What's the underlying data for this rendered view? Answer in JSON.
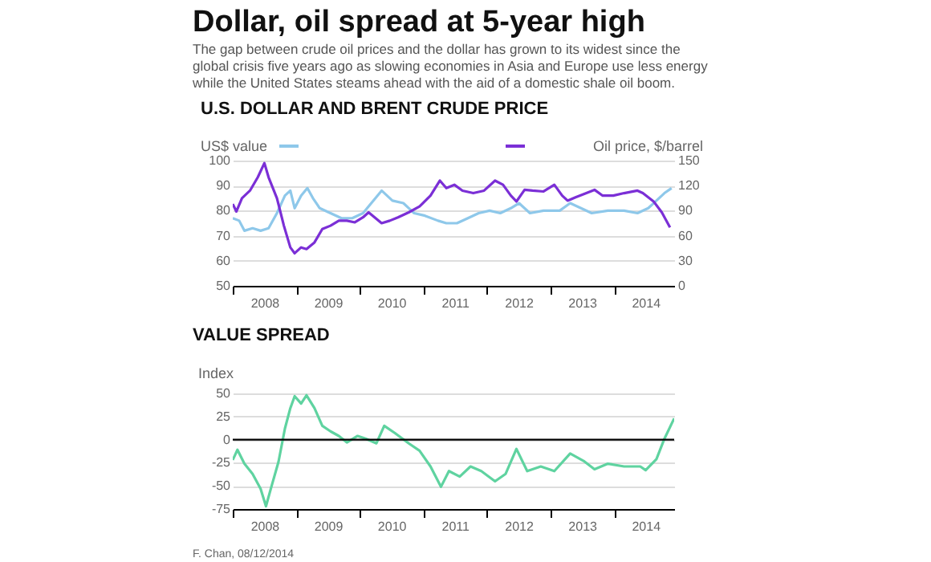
{
  "chart_data": [
    {
      "type": "line",
      "title": "U.S. DOLLAR AND BRENT CRUDE PRICE",
      "annotations": [
        "Dollar, oil spread at 5-year high",
        "The gap between crude oil prices and the dollar has grown to its widest since the global crisis five years ago as slowing economies in Asia and Europe use less energy while the United States steams ahead with the aid of a domestic shale oil boom."
      ],
      "series": [
        {
          "name": "US$ value",
          "color": "#8ec8ea",
          "x": [
            "2008-01-01",
            "2008-02-07",
            "2008-03-08",
            "2008-04-24",
            "2008-06-09",
            "2008-07-25",
            "2008-09-11",
            "2008-10-27",
            "2008-11-27",
            "2008-12-22",
            "2009-01-28",
            "2009-03-05",
            "2009-04-06",
            "2009-05-15",
            "2009-07-16",
            "2009-09-17",
            "2009-11-18",
            "2010-01-19",
            "2010-05-06",
            "2010-07-07",
            "2010-09-08",
            "2010-11-09",
            "2011-01-10",
            "2011-03-26",
            "2011-05-13",
            "2011-07-13",
            "2011-09-14",
            "2011-11-15",
            "2012-01-17",
            "2012-03-18",
            "2012-05-18",
            "2012-07-04",
            "2012-09-05",
            "2012-11-22",
            "2013-02-23",
            "2013-04-24",
            "2013-06-25",
            "2013-08-26",
            "2013-11-27",
            "2014-02-28",
            "2014-05-16",
            "2014-07-17",
            "2014-09-02",
            "2014-10-18",
            "2014-11-28"
          ],
          "values": [
            77,
            76,
            72,
            73,
            72,
            73,
            79,
            86,
            88,
            81,
            86,
            89,
            85,
            81,
            79,
            77,
            77,
            79,
            88,
            84,
            83,
            79,
            78,
            76,
            75,
            75,
            77,
            79,
            80,
            79,
            81,
            83,
            79,
            80,
            80,
            83,
            81,
            79,
            80,
            80,
            79,
            81,
            84,
            87,
            89
          ]
        },
        {
          "name": "Oil price, $/barrel",
          "color": "#7b2fd6",
          "axis": "y2",
          "x": [
            "2008-01-01",
            "2008-01-22",
            "2008-02-23",
            "2008-04-09",
            "2008-05-24",
            "2008-07-01",
            "2008-07-25",
            "2008-09-11",
            "2008-10-21",
            "2008-11-27",
            "2008-12-22",
            "2009-01-28",
            "2009-02-28",
            "2009-04-15",
            "2009-05-30",
            "2009-07-16",
            "2009-09-02",
            "2009-10-18",
            "2009-12-03",
            "2010-01-19",
            "2010-02-20",
            "2010-05-06",
            "2010-06-22",
            "2010-08-08",
            "2010-10-09",
            "2010-12-10",
            "2011-02-11",
            "2011-04-06",
            "2011-05-13",
            "2011-06-28",
            "2011-08-14",
            "2011-10-15",
            "2011-12-16",
            "2012-02-17",
            "2012-04-03",
            "2012-05-18",
            "2012-06-19",
            "2012-08-05",
            "2012-09-20",
            "2012-11-22",
            "2013-01-23",
            "2013-03-09",
            "2013-04-09",
            "2013-05-25",
            "2013-07-26",
            "2013-09-11",
            "2013-10-28",
            "2013-12-28",
            "2014-02-28",
            "2014-05-16",
            "2014-06-16",
            "2014-08-17",
            "2014-10-03",
            "2014-11-19"
          ],
          "values": [
            98,
            89,
            105,
            114,
            130,
            147,
            130,
            105,
            72,
            46,
            39,
            46,
            44,
            52,
            68,
            72,
            78,
            78,
            76,
            82,
            88,
            75,
            78,
            82,
            88,
            95,
            108,
            126,
            117,
            121,
            114,
            111,
            114,
            126,
            121,
            108,
            101,
            115,
            114,
            113,
            121,
            108,
            102,
            106,
            111,
            115,
            108,
            108,
            111,
            114,
            111,
            101,
            88,
            70
          ]
        }
      ],
      "xlim": [
        "2008-01-01",
        "2014-12-13"
      ],
      "xticks": [
        {
          "value": "2008-01-01",
          "label": null
        },
        {
          "value": "2008-07-01",
          "label": "2008"
        },
        {
          "value": "2009-01-01",
          "label": null
        },
        {
          "value": "2009-07-01",
          "label": "2009"
        },
        {
          "value": "2010-01-01",
          "label": null
        },
        {
          "value": "2010-07-01",
          "label": "2010"
        },
        {
          "value": "2011-01-01",
          "label": null
        },
        {
          "value": "2011-07-01",
          "label": "2011"
        },
        {
          "value": "2012-01-01",
          "label": null
        },
        {
          "value": "2012-07-01",
          "label": "2012"
        },
        {
          "value": "2013-01-01",
          "label": null
        },
        {
          "value": "2013-07-01",
          "label": "2013"
        },
        {
          "value": "2014-01-01",
          "label": null
        },
        {
          "value": "2014-07-01",
          "label": "2014"
        }
      ],
      "ylim": [
        50,
        100
      ],
      "yticks": [
        50,
        60,
        70,
        80,
        90,
        100
      ],
      "y2lim": [
        0,
        150
      ],
      "y2ticks": [
        0,
        30,
        60,
        90,
        120,
        150
      ],
      "grid": "y",
      "legend": "top"
    },
    {
      "type": "line",
      "title": "VALUE SPREAD",
      "ylabel": "Index",
      "annotations": [
        "F. Chan, 08/12/2014"
      ],
      "series": [
        {
          "color": "#5fd3a0",
          "x": [
            "2008-01-01",
            "2008-01-28",
            "2008-03-08",
            "2008-04-24",
            "2008-06-09",
            "2008-07-10",
            "2008-08-10",
            "2008-09-20",
            "2008-10-27",
            "2008-11-27",
            "2008-12-22",
            "2009-01-28",
            "2009-02-28",
            "2009-04-15",
            "2009-05-30",
            "2009-07-16",
            "2009-09-02",
            "2009-10-18",
            "2009-12-19",
            "2010-02-05",
            "2010-04-06",
            "2010-05-21",
            "2010-07-22",
            "2010-10-09",
            "2010-12-10",
            "2011-02-11",
            "2011-04-12",
            "2011-05-28",
            "2011-07-29",
            "2011-09-29",
            "2011-11-30",
            "2012-02-17",
            "2012-04-18",
            "2012-06-19",
            "2012-08-20",
            "2012-11-06",
            "2013-01-23",
            "2013-04-24",
            "2013-07-10",
            "2013-09-11",
            "2013-11-27",
            "2014-02-28",
            "2014-06-01",
            "2014-07-02",
            "2014-09-02",
            "2014-10-18",
            "2014-12-13"
          ],
          "values": [
            -22,
            -11,
            -26,
            -37,
            -53,
            -72,
            -51,
            -24,
            12,
            34,
            47,
            39,
            48,
            34,
            15,
            9,
            4,
            -3,
            4,
            1,
            -4,
            15,
            7,
            -4,
            -12,
            -29,
            -51,
            -34,
            -40,
            -29,
            -34,
            -45,
            -37,
            -10,
            -34,
            -29,
            -34,
            -15,
            -23,
            -32,
            -26,
            -29,
            -29,
            -33,
            -21,
            1,
            23
          ]
        }
      ],
      "xlim": [
        "2008-01-01",
        "2014-12-13"
      ],
      "xticks": [
        {
          "value": "2008-01-01",
          "label": null
        },
        {
          "value": "2008-07-01",
          "label": "2008"
        },
        {
          "value": "2009-01-01",
          "label": null
        },
        {
          "value": "2009-07-01",
          "label": "2009"
        },
        {
          "value": "2010-01-01",
          "label": null
        },
        {
          "value": "2010-07-01",
          "label": "2010"
        },
        {
          "value": "2011-01-01",
          "label": null
        },
        {
          "value": "2011-07-01",
          "label": "2011"
        },
        {
          "value": "2012-01-01",
          "label": null
        },
        {
          "value": "2012-07-01",
          "label": "2012"
        },
        {
          "value": "2013-01-01",
          "label": null
        },
        {
          "value": "2013-07-01",
          "label": "2013"
        },
        {
          "value": "2014-01-01",
          "label": null
        },
        {
          "value": "2014-07-01",
          "label": "2014"
        }
      ],
      "ylim": [
        -75,
        50
      ],
      "yticks": [
        -75,
        -50,
        -25,
        0,
        25,
        50
      ],
      "ref_lines": [
        {
          "axis": "y",
          "value": 0,
          "color": "#000000"
        }
      ],
      "grid": "y"
    }
  ]
}
